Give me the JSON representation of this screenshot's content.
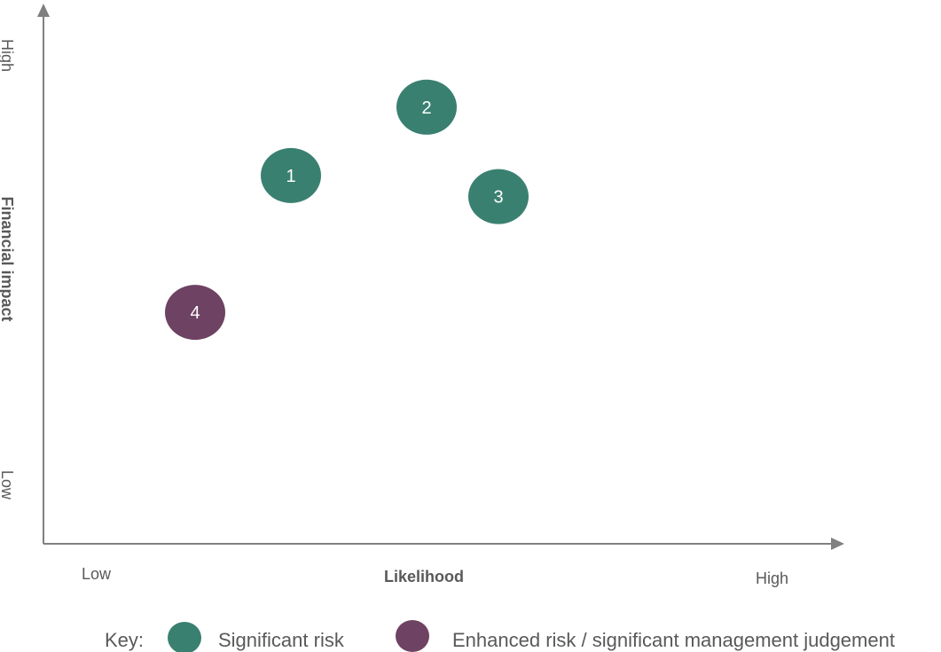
{
  "chart_data": {
    "type": "scatter",
    "xlabel": "Likelihood",
    "ylabel": "Financial impact",
    "x_low_label": "Low",
    "x_high_label": "High",
    "y_low_label": "Low",
    "y_high_label": "High",
    "xlim": [
      0,
      10
    ],
    "ylim": [
      0,
      10
    ],
    "grid": false,
    "legend_position": "bottom",
    "points": [
      {
        "label": "1",
        "x": 3.1,
        "y": 7.0,
        "category": "significant"
      },
      {
        "label": "2",
        "x": 4.8,
        "y": 8.3,
        "category": "significant"
      },
      {
        "label": "3",
        "x": 5.7,
        "y": 6.6,
        "category": "significant"
      },
      {
        "label": "4",
        "x": 1.9,
        "y": 4.4,
        "category": "enhanced"
      }
    ],
    "legend": {
      "title": "Key:",
      "items": [
        {
          "key": "significant",
          "name": "Significant risk",
          "color": "#3a8070"
        },
        {
          "key": "enhanced",
          "name": "Enhanced risk / significant management judgement",
          "color": "#6e4262"
        }
      ]
    }
  },
  "colors": {
    "axis": "#808080",
    "text": "#595959"
  }
}
